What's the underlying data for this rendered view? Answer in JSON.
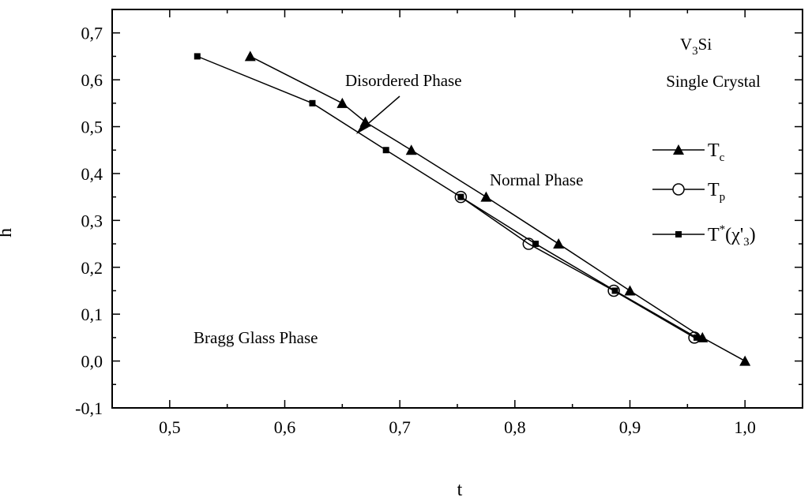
{
  "chart_data": {
    "type": "line",
    "xlabel": "t",
    "ylabel": "h",
    "xlim": [
      0.45,
      1.05
    ],
    "ylim": [
      -0.1,
      0.75
    ],
    "grid": false,
    "x_ticks": [
      0.5,
      0.6,
      0.7,
      0.8,
      0.9,
      1.0
    ],
    "x_tick_labels": [
      "0,5",
      "0,6",
      "0,7",
      "0,8",
      "0,9",
      "1,0"
    ],
    "y_ticks": [
      -0.1,
      0.0,
      0.1,
      0.2,
      0.3,
      0.4,
      0.5,
      0.6,
      0.7
    ],
    "y_tick_labels": [
      "-0,1",
      "0,0",
      "0,1",
      "0,2",
      "0,3",
      "0,4",
      "0,5",
      "0,6",
      "0,7"
    ],
    "legend_position": "right",
    "series": [
      {
        "name": "Tc",
        "marker": "triangle",
        "x": [
          0.57,
          0.65,
          0.67,
          0.71,
          0.775,
          0.838,
          0.9,
          0.963,
          1.0
        ],
        "y": [
          0.65,
          0.55,
          0.51,
          0.45,
          0.35,
          0.25,
          0.15,
          0.05,
          0.0
        ]
      },
      {
        "name": "Tp",
        "marker": "circle",
        "x": [
          0.753,
          0.812,
          0.886,
          0.956
        ],
        "y": [
          0.35,
          0.25,
          0.15,
          0.05
        ]
      },
      {
        "name": "T*(χ'3)",
        "marker": "square",
        "x": [
          0.524,
          0.624,
          0.688,
          0.753,
          0.818,
          0.887,
          0.958
        ],
        "y": [
          0.65,
          0.55,
          0.45,
          0.35,
          0.25,
          0.15,
          0.05
        ]
      }
    ],
    "annotations": {
      "sample_formula": "V",
      "sample_formula_sub": "3",
      "sample_formula_rest": "Si",
      "sample_type": "Single Crystal",
      "disordered": "Disordered Phase",
      "normal": "Normal Phase",
      "bragg": "Bragg Glass Phase"
    },
    "legend": {
      "tc_main": "T",
      "tc_sub": "c",
      "tp_main": "T",
      "tp_sub": "p",
      "tstar_main": "T",
      "tstar_sup": "*",
      "tstar_open": "(χ'",
      "tstar_sub": "3",
      "tstar_close": ")"
    }
  }
}
